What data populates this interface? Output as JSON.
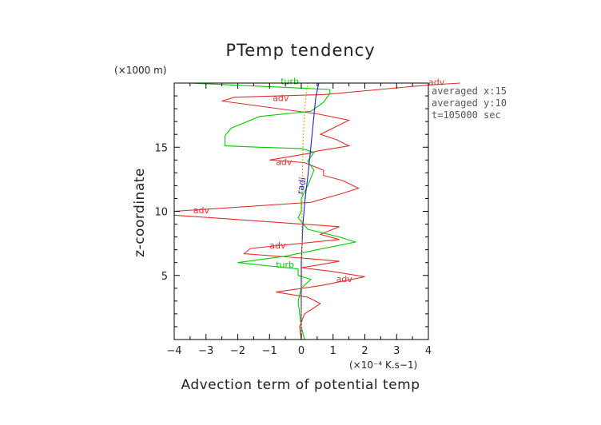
{
  "chart_data": {
    "type": "line",
    "title": "PTemp tendency",
    "xlabel": "Advection term of potential temp",
    "ylabel": "z-coordinate",
    "x_unit": "(×10⁻⁴ K.s−1)",
    "y_unit": "(×1000 m)",
    "xlim": [
      -4,
      4
    ],
    "ylim": [
      0,
      20
    ],
    "xticks": [
      "−4",
      "−3",
      "−2",
      "−1",
      "0",
      "1",
      "2",
      "3",
      "4"
    ],
    "yticks": [
      "5",
      "10",
      "15"
    ],
    "ytick_values": [
      5,
      10,
      15
    ],
    "info_lines": [
      "averaged  x:15",
      "averaged  y:10",
      "t=105000 sec"
    ],
    "series": [
      {
        "name": "adv",
        "color": "#e03030",
        "points": [
          [
            0.0,
            0.0
          ],
          [
            -0.05,
            1.0
          ],
          [
            0.1,
            2.0
          ],
          [
            0.6,
            2.8
          ],
          [
            0.2,
            3.3
          ],
          [
            -0.8,
            3.7
          ],
          [
            0.6,
            4.2
          ],
          [
            2.0,
            4.9
          ],
          [
            1.0,
            5.3
          ],
          [
            0.0,
            5.6
          ],
          [
            0.5,
            5.8
          ],
          [
            1.2,
            6.1
          ],
          [
            0.3,
            6.3
          ],
          [
            -1.8,
            6.7
          ],
          [
            -1.6,
            7.1
          ],
          [
            1.2,
            7.8
          ],
          [
            0.6,
            8.2
          ],
          [
            1.2,
            8.8
          ],
          [
            -4.0,
            9.7
          ],
          [
            -4.0,
            10.0
          ],
          [
            0.3,
            10.7
          ],
          [
            1.3,
            11.4
          ],
          [
            1.8,
            11.8
          ],
          [
            1.3,
            12.4
          ],
          [
            0.7,
            12.8
          ],
          [
            0.7,
            13.2
          ],
          [
            0.1,
            13.8
          ],
          [
            -1.0,
            14.0
          ],
          [
            0.2,
            14.5
          ],
          [
            0.5,
            14.7
          ],
          [
            1.5,
            15.1
          ],
          [
            1.1,
            15.6
          ],
          [
            0.6,
            16.0
          ],
          [
            1.5,
            17.1
          ],
          [
            0.5,
            17.6
          ],
          [
            -2.5,
            18.6
          ],
          [
            -2.1,
            18.9
          ],
          [
            0.7,
            19.1
          ],
          [
            4.0,
            19.85
          ],
          [
            5.0,
            20.0
          ]
        ]
      },
      {
        "name": "turb",
        "color": "#00cc00",
        "points": [
          [
            0.1,
            0.0
          ],
          [
            0.0,
            1.0
          ],
          [
            -0.05,
            2.0
          ],
          [
            -0.1,
            3.0
          ],
          [
            0.0,
            4.0
          ],
          [
            0.3,
            4.7
          ],
          [
            -0.1,
            5.0
          ],
          [
            -0.1,
            5.5
          ],
          [
            -2.0,
            6.0
          ],
          [
            -0.5,
            6.5
          ],
          [
            0.5,
            7.0
          ],
          [
            1.7,
            7.6
          ],
          [
            1.2,
            8.0
          ],
          [
            0.2,
            8.6
          ],
          [
            -0.1,
            9.5
          ],
          [
            0.0,
            10.0
          ],
          [
            0.0,
            11.0
          ],
          [
            0.2,
            12.0
          ],
          [
            0.4,
            13.2
          ],
          [
            0.2,
            13.9
          ],
          [
            0.4,
            14.6
          ],
          [
            0.0,
            14.9
          ],
          [
            -1.3,
            15.0
          ],
          [
            -2.4,
            15.1
          ],
          [
            -2.4,
            15.9
          ],
          [
            -2.2,
            16.5
          ],
          [
            -1.3,
            17.4
          ],
          [
            0.3,
            17.8
          ],
          [
            0.7,
            18.5
          ],
          [
            0.9,
            19.2
          ],
          [
            0.9,
            19.5
          ],
          [
            -3.5,
            20.0
          ]
        ]
      },
      {
        "name": "radi",
        "color": "#2020cc",
        "points": [
          [
            0.0,
            0.0
          ],
          [
            0.0,
            3.0
          ],
          [
            0.0,
            6.0
          ],
          [
            0.05,
            9.0
          ],
          [
            0.12,
            11.0
          ],
          [
            0.22,
            13.0
          ],
          [
            0.3,
            15.0
          ],
          [
            0.38,
            17.0
          ],
          [
            0.45,
            18.8
          ],
          [
            0.55,
            20.0
          ]
        ]
      },
      {
        "name": "",
        "color": "#ff9900",
        "points": [
          [
            0.0,
            0.0
          ],
          [
            0.02,
            5.0
          ],
          [
            0.02,
            10.0
          ],
          [
            0.05,
            15.0
          ],
          [
            0.1,
            18.0
          ],
          [
            0.2,
            20.0
          ]
        ]
      }
    ],
    "curve_labels": [
      {
        "text": "adv",
        "series": "adv",
        "x": 4.0,
        "y": 19.85
      },
      {
        "text": "adv",
        "series": "adv",
        "x": -0.9,
        "y": 18.6
      },
      {
        "text": "adv",
        "series": "adv",
        "x": -0.8,
        "y": 13.6
      },
      {
        "text": "adv",
        "series": "adv",
        "x": -3.4,
        "y": 9.85
      },
      {
        "text": "adv",
        "series": "adv",
        "x": -1.0,
        "y": 7.1
      },
      {
        "text": "adv",
        "series": "adv",
        "x": 1.1,
        "y": 4.5
      },
      {
        "text": "turb",
        "series": "turb",
        "x": -0.65,
        "y": 19.9
      },
      {
        "text": "turb",
        "series": "turb",
        "x": -0.8,
        "y": 5.6
      },
      {
        "text": "radi",
        "series": "radi",
        "x": 0.05,
        "y": 11.3
      }
    ]
  }
}
